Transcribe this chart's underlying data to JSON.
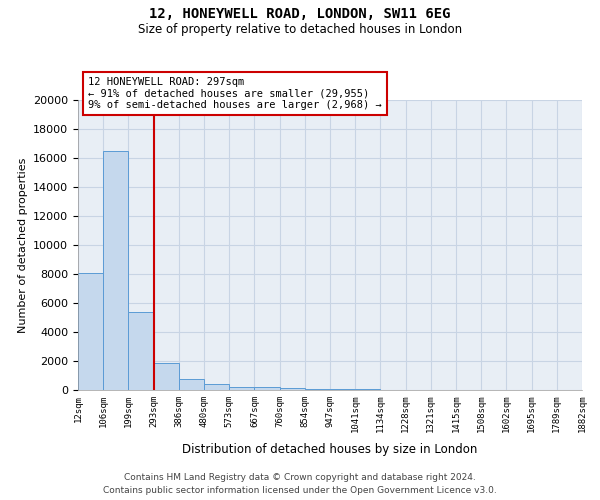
{
  "title_line1": "12, HONEYWELL ROAD, LONDON, SW11 6EG",
  "title_line2": "Size of property relative to detached houses in London",
  "xlabel": "Distribution of detached houses by size in London",
  "ylabel": "Number of detached properties",
  "bar_values": [
    8100,
    16500,
    5350,
    1850,
    750,
    380,
    230,
    175,
    130,
    100,
    60,
    40,
    30,
    25,
    20,
    15,
    12,
    10,
    8,
    7
  ],
  "bar_labels": [
    "12sqm",
    "106sqm",
    "199sqm",
    "293sqm",
    "386sqm",
    "480sqm",
    "573sqm",
    "667sqm",
    "760sqm",
    "854sqm",
    "947sqm",
    "1041sqm",
    "1134sqm",
    "1228sqm",
    "1321sqm",
    "1415sqm",
    "1508sqm",
    "1602sqm",
    "1695sqm",
    "1789sqm",
    "1882sqm"
  ],
  "bar_color": "#c5d8ed",
  "bar_edge_color": "#5b9bd5",
  "vline_color": "#cc0000",
  "annotation_text": "12 HONEYWELL ROAD: 297sqm\n← 91% of detached houses are smaller (29,955)\n9% of semi-detached houses are larger (2,968) →",
  "annotation_box_color": "#ffffff",
  "annotation_box_edge_color": "#cc0000",
  "ylim": [
    0,
    20000
  ],
  "yticks": [
    0,
    2000,
    4000,
    6000,
    8000,
    10000,
    12000,
    14000,
    16000,
    18000,
    20000
  ],
  "footer_line1": "Contains HM Land Registry data © Crown copyright and database right 2024.",
  "footer_line2": "Contains public sector information licensed under the Open Government Licence v3.0.",
  "bg_color": "#ffffff",
  "plot_bg_color": "#e8eef5",
  "grid_color": "#c8d4e4"
}
